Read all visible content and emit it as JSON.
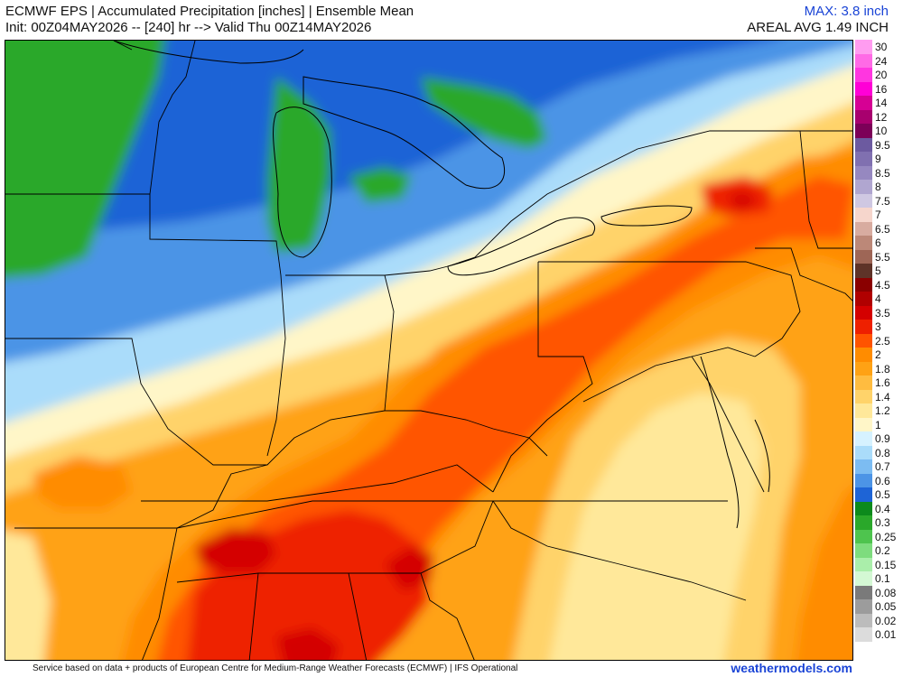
{
  "header": {
    "title_line1": "ECMWF EPS | Accumulated Precipitation [inches] | Ensemble Mean",
    "title_line2": "Init: 00Z04MAY2026 -- [240] hr --> Valid Thu 00Z14MAY2026",
    "max_label": "MAX: 3.8 inch",
    "areal_avg_label": "AREAL AVG 1.49 INCH"
  },
  "legend": {
    "items": [
      {
        "label": "30",
        "color": "#ff9cf0"
      },
      {
        "label": "24",
        "color": "#ff6ae6"
      },
      {
        "label": "20",
        "color": "#ff36e0"
      },
      {
        "label": "16",
        "color": "#ff00d6"
      },
      {
        "label": "14",
        "color": "#d60094"
      },
      {
        "label": "12",
        "color": "#a8006e"
      },
      {
        "label": "10",
        "color": "#7c0058"
      },
      {
        "label": "9.5",
        "color": "#6c5aa0"
      },
      {
        "label": "9",
        "color": "#8070b0"
      },
      {
        "label": "8.5",
        "color": "#9688c0"
      },
      {
        "label": "8",
        "color": "#b0a6d0"
      },
      {
        "label": "7.5",
        "color": "#cfc8e2"
      },
      {
        "label": "7",
        "color": "#f6d6cc"
      },
      {
        "label": "6.5",
        "color": "#d8aca0"
      },
      {
        "label": "6",
        "color": "#bc8878"
      },
      {
        "label": "5.5",
        "color": "#9e6656"
      },
      {
        "label": "5",
        "color": "#5e3328"
      },
      {
        "label": "4.5",
        "color": "#8a0000"
      },
      {
        "label": "4",
        "color": "#b00000"
      },
      {
        "label": "3.5",
        "color": "#d40000"
      },
      {
        "label": "3",
        "color": "#ee2000"
      },
      {
        "label": "2.5",
        "color": "#ff5400"
      },
      {
        "label": "2",
        "color": "#ff8c00"
      },
      {
        "label": "1.8",
        "color": "#ffa214"
      },
      {
        "label": "1.6",
        "color": "#ffbc40"
      },
      {
        "label": "1.4",
        "color": "#ffd36a"
      },
      {
        "label": "1.2",
        "color": "#ffe89a"
      },
      {
        "label": "1",
        "color": "#fff6c8"
      },
      {
        "label": "0.9",
        "color": "#d6f2ff"
      },
      {
        "label": "0.8",
        "color": "#aadcfa"
      },
      {
        "label": "0.7",
        "color": "#7cbcf2"
      },
      {
        "label": "0.6",
        "color": "#4c94e6"
      },
      {
        "label": "0.5",
        "color": "#1e64d6"
      },
      {
        "label": "0.4",
        "color": "#0c8a1c"
      },
      {
        "label": "0.3",
        "color": "#2aa82a"
      },
      {
        "label": "0.25",
        "color": "#4ec44e"
      },
      {
        "label": "0.2",
        "color": "#7edc7e"
      },
      {
        "label": "0.15",
        "color": "#aaeeaa"
      },
      {
        "label": "0.1",
        "color": "#d4f8d4"
      },
      {
        "label": "0.08",
        "color": "#7a7a7a"
      },
      {
        "label": "0.05",
        "color": "#9c9c9c"
      },
      {
        "label": "0.02",
        "color": "#bcbcbc"
      },
      {
        "label": "0.01",
        "color": "#dcdcdc"
      }
    ]
  },
  "footer": {
    "credit": "Service based on data + products of European Centre for Medium-Range Weather Forecasts (ECMWF) | IFS Operational",
    "brand": "weathermodels.com"
  }
}
